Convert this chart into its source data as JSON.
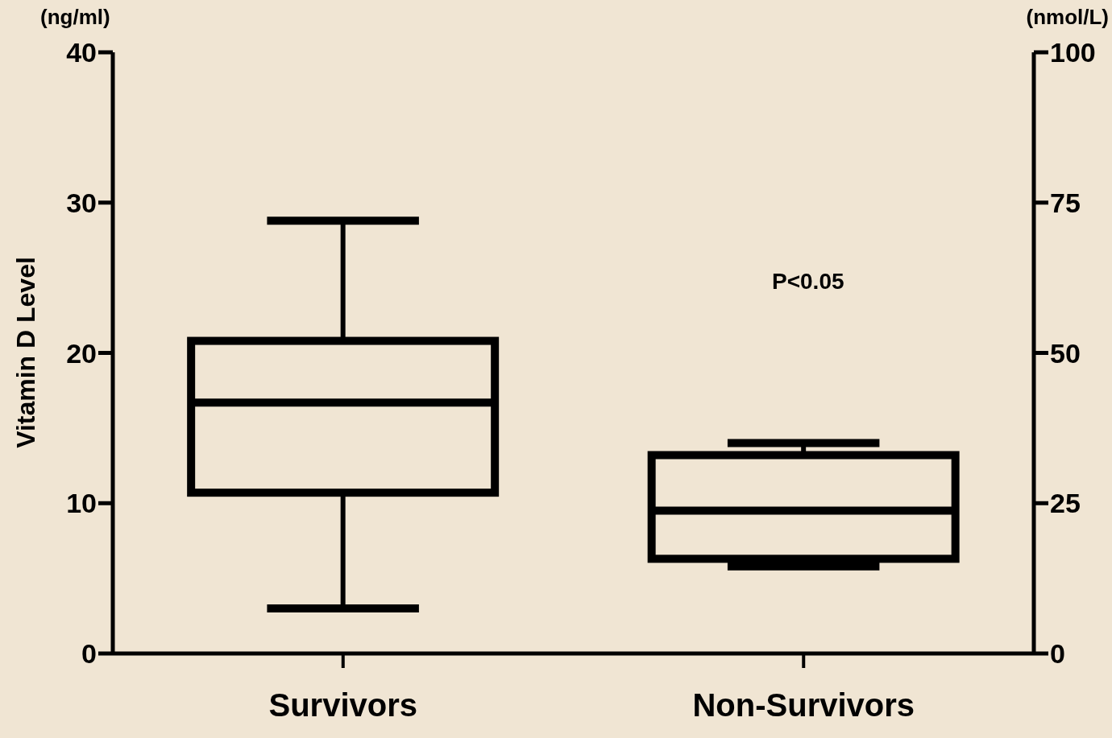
{
  "chart_data": {
    "type": "box",
    "categories": [
      "Survivors",
      "Non-Survivors"
    ],
    "boxes": [
      {
        "low": 3.0,
        "q1": 10.7,
        "median": 16.7,
        "q3": 20.8,
        "high": 28.8
      },
      {
        "low": 5.8,
        "q1": 6.3,
        "median": 9.5,
        "q3": 13.2,
        "high": 14.0
      }
    ],
    "color": "#000000",
    "ylabel": "Vitamin D Level",
    "y2label": "(nmol/L)",
    "ylim": [
      0,
      40
    ],
    "yticks": [
      0,
      10,
      20,
      30,
      40
    ],
    "y2lim": [
      0,
      100
    ],
    "y2ticks": [
      0,
      25,
      50,
      75,
      100
    ],
    "annotations": [
      "(ng/ml)",
      "P<0.05"
    ]
  }
}
